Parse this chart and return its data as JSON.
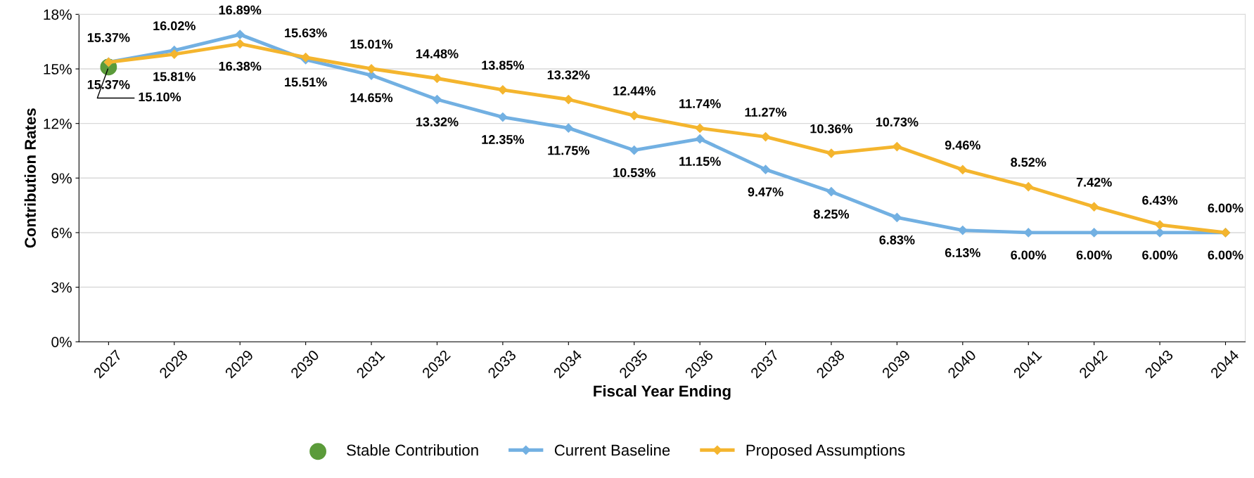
{
  "chart_data": {
    "type": "line",
    "xlabel": "Fiscal Year Ending",
    "ylabel": "Contribution Rates",
    "categories": [
      "2027",
      "2028",
      "2029",
      "2030",
      "2031",
      "2032",
      "2033",
      "2034",
      "2035",
      "2036",
      "2037",
      "2038",
      "2039",
      "2040",
      "2041",
      "2042",
      "2043",
      "2044"
    ],
    "ylim": [
      0,
      18
    ],
    "yticks": [
      {
        "value": 0,
        "label": "0%"
      },
      {
        "value": 3,
        "label": "3%"
      },
      {
        "value": 6,
        "label": "6%"
      },
      {
        "value": 9,
        "label": "9%"
      },
      {
        "value": 12,
        "label": "12%"
      },
      {
        "value": 15,
        "label": "15%"
      },
      {
        "value": 18,
        "label": "18%"
      }
    ],
    "grid": "y",
    "legend": "bottom",
    "series": [
      {
        "name": "Stable Contribution",
        "type": "scatter",
        "marker": "circle",
        "color": "#5b9b3a",
        "values": [
          15.1,
          null,
          null,
          null,
          null,
          null,
          null,
          null,
          null,
          null,
          null,
          null,
          null,
          null,
          null,
          null,
          null,
          null
        ],
        "value_labels": [
          "15.10%",
          null,
          null,
          null,
          null,
          null,
          null,
          null,
          null,
          null,
          null,
          null,
          null,
          null,
          null,
          null,
          null,
          null
        ]
      },
      {
        "name": "Current Baseline",
        "type": "line",
        "marker": "diamond",
        "color": "#72b0e2",
        "values": [
          15.37,
          16.02,
          16.89,
          15.51,
          14.65,
          13.32,
          12.35,
          11.75,
          10.53,
          11.15,
          9.47,
          8.25,
          6.83,
          6.13,
          6.0,
          6.0,
          6.0,
          6.0
        ],
        "value_labels": [
          "15.37%",
          "16.02%",
          "16.89%",
          "15.51%",
          "14.65%",
          "13.32%",
          "12.35%",
          "11.75%",
          "10.53%",
          "11.15%",
          "9.47%",
          "8.25%",
          "6.83%",
          "6.13%",
          "6.00%",
          "6.00%",
          "6.00%",
          "6.00%"
        ]
      },
      {
        "name": "Proposed Assumptions",
        "type": "line",
        "marker": "diamond",
        "color": "#f4b52e",
        "values": [
          15.37,
          15.81,
          16.38,
          15.63,
          15.01,
          14.48,
          13.85,
          13.32,
          12.44,
          11.74,
          11.27,
          10.36,
          10.73,
          9.46,
          8.52,
          7.42,
          6.43,
          6.0
        ],
        "value_labels": [
          "15.37%",
          "15.81%",
          "16.38%",
          "15.63%",
          "15.01%",
          "14.48%",
          "13.85%",
          "13.32%",
          "12.44%",
          "11.74%",
          "11.27%",
          "10.36%",
          "10.73%",
          "9.46%",
          "8.52%",
          "7.42%",
          "6.43%",
          "6.00%"
        ]
      }
    ]
  }
}
